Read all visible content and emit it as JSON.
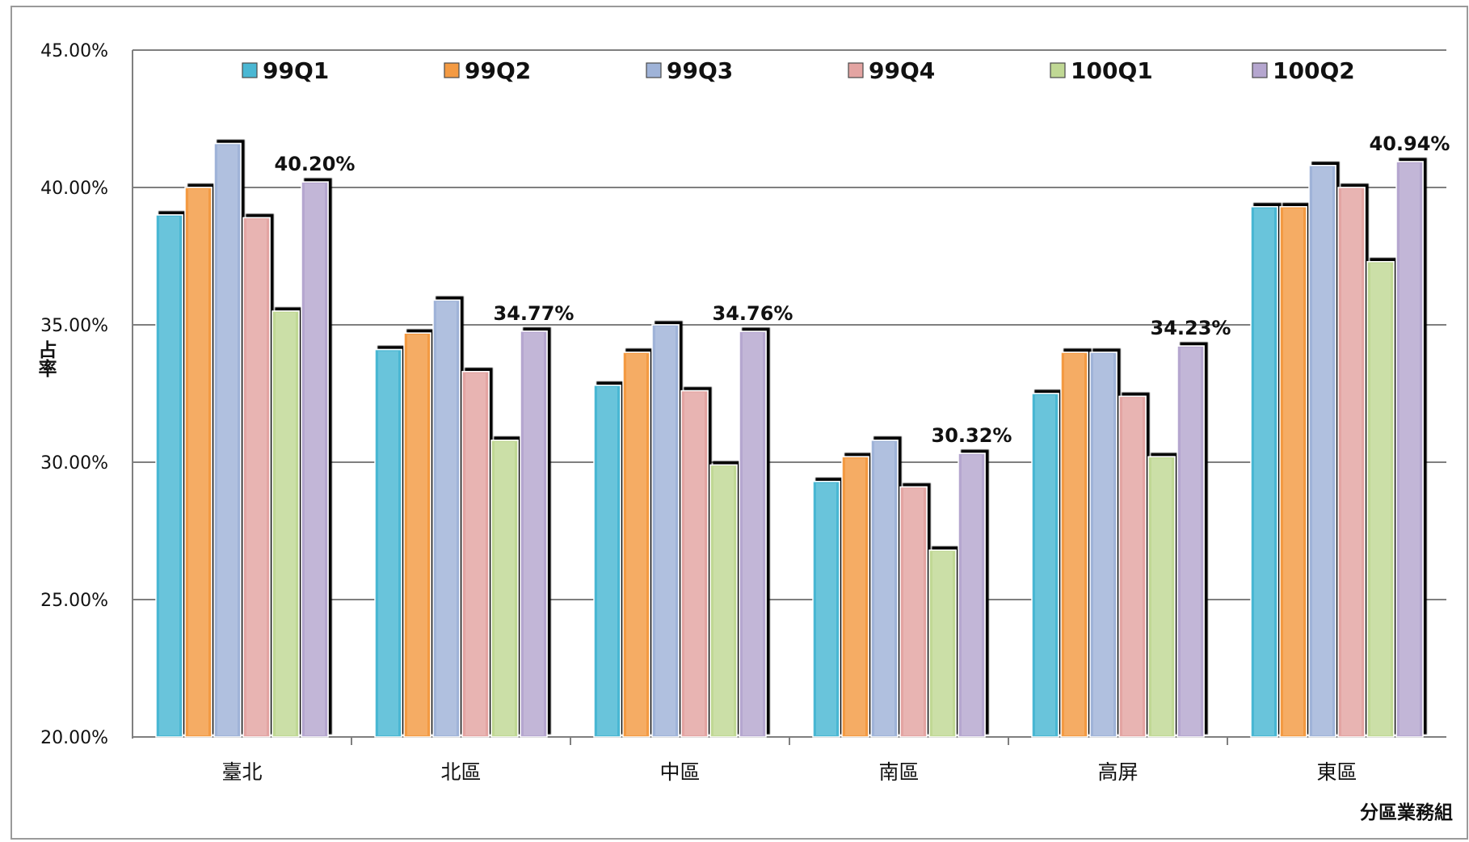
{
  "chart_data": {
    "type": "bar",
    "title": "",
    "xlabel": "分區業務組",
    "ylabel": "占率",
    "ylim": [
      20,
      45
    ],
    "yticks": [
      "20.00%",
      "25.00%",
      "30.00%",
      "35.00%",
      "40.00%",
      "45.00%"
    ],
    "grid": true,
    "legend_position": "top",
    "categories": [
      "臺北",
      "北區",
      "中區",
      "南區",
      "高屏",
      "東區"
    ],
    "series": [
      {
        "name": "99Q1",
        "color": "#4ab7d3",
        "values": [
          39.0,
          34.1,
          32.8,
          29.3,
          32.5,
          39.3
        ]
      },
      {
        "name": "99Q2",
        "color": "#f39a43",
        "values": [
          40.0,
          34.7,
          34.0,
          30.2,
          34.0,
          39.3
        ]
      },
      {
        "name": "99Q3",
        "color": "#9fb3d8",
        "values": [
          41.6,
          35.9,
          35.0,
          30.8,
          34.0,
          40.8
        ]
      },
      {
        "name": "99Q4",
        "color": "#e3a4a2",
        "values": [
          38.9,
          33.3,
          32.6,
          29.1,
          32.4,
          40.0
        ]
      },
      {
        "name": "100Q1",
        "color": "#c0d894",
        "values": [
          35.5,
          30.8,
          29.9,
          26.8,
          30.2,
          37.3
        ]
      },
      {
        "name": "100Q2",
        "color": "#b5a6cf",
        "values": [
          40.2,
          34.77,
          34.76,
          30.32,
          34.23,
          40.94
        ]
      }
    ],
    "data_labels": [
      "40.20%",
      "34.77%",
      "34.76%",
      "30.32%",
      "34.23%",
      "40.94%"
    ]
  }
}
